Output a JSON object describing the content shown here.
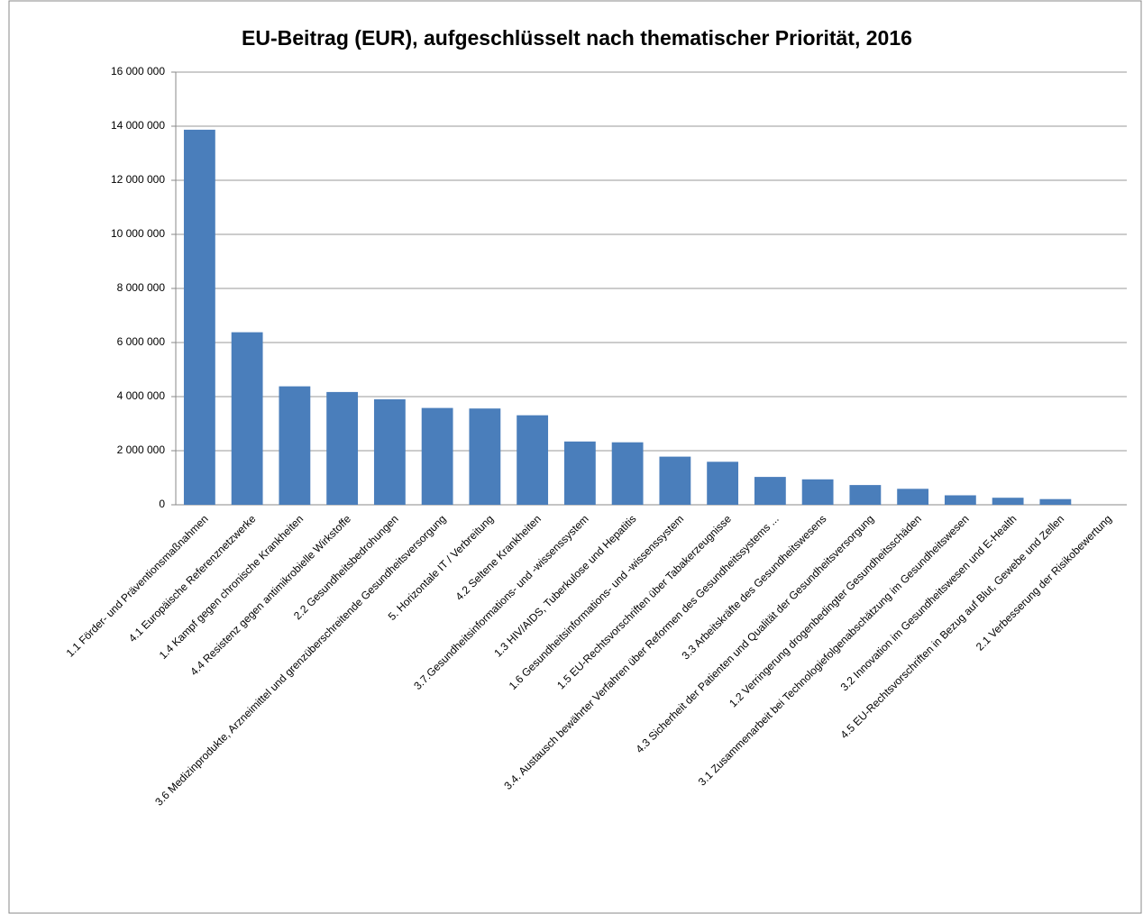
{
  "chart_data": {
    "type": "bar",
    "title": "EU-Beitrag (EUR), aufgeschlüsselt nach thematischer Priorität, 2016",
    "categories": [
      "1.1 Förder- und Präventionsmaßnahmen",
      "4.1 Europäische Referenznetzwerke",
      "1.4 Kampf gegen chronische Krankheiten",
      "4.4 Resistenz gegen antimikrobielle Wirkstoffe",
      "2.2 Gesundheitsbedrohungen",
      "3.6 Medizinprodukte, Arzneimittel und grenzüberschreitende Gesundheitsversorgung",
      "5. Horizontale IT / Verbreitung",
      "4.2 Seltene Krankheiten",
      "3.7.Gesundheitsinformations- und -wissenssystem",
      "1.3 HIV/AIDS, Tuberkulose und Hepatitis",
      "1.6 Gesundheitsinformations- und -wissenssystem",
      "1.5 EU-Rechtsvorschriften über Tabakerzeugnisse",
      "3.4. Austausch bewährter Verfahren über Reformen des Gesundheitssystems ...",
      "3.3 Arbeitskräfte des Gesundheitswesens",
      "4.3 Sicherheit der Patienten und Qualität der Gesundheitsversorgung",
      "1.2 Verringerung drogenbedingter Gesundheitsschäden",
      "3.1 Zusammenarbeit bei Technologiefolgenabschätzung im Gesundheitswesen",
      "3.2 Innovation im Gesundheitswesen und E-Health",
      "4.5 EU-Rechtsvorschriften in Bezug auf Blut, Gewebe und Zellen",
      "2.1 Verbesserung der Risikobewertung"
    ],
    "values": [
      13870000,
      6380000,
      4380000,
      4170000,
      3900000,
      3580000,
      3560000,
      3310000,
      2340000,
      2310000,
      1780000,
      1590000,
      1030000,
      940000,
      730000,
      590000,
      350000,
      260000,
      210000,
      0
    ],
    "color": "#4a7ebb",
    "ylim": [
      0,
      16000000
    ],
    "yticks": [
      0,
      {
        "value": 2000000,
        "label": "2 000 000"
      },
      {
        "value": 4000000,
        "label": "4 000 000"
      },
      {
        "value": 6000000,
        "label": "6 000 000"
      },
      {
        "value": 8000000,
        "label": "8 000 000"
      },
      {
        "value": 10000000,
        "label": "10 000 000"
      },
      {
        "value": 12000000,
        "label": "12 000 000"
      },
      {
        "value": 14000000,
        "label": "14 000 000"
      },
      {
        "value": 16000000,
        "label": "16 000 000"
      }
    ],
    "grid": true
  }
}
